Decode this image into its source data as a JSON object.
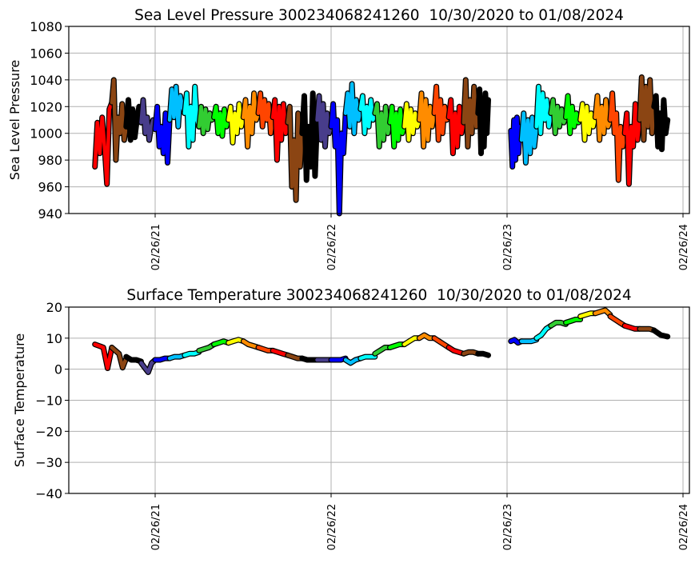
{
  "chart_data": [
    {
      "type": "line",
      "title": "Sea Level Pressure 300234068241260  10/30/2020 to 01/08/2024",
      "xlabel": "",
      "ylabel": "Sea Level Pressure",
      "ylim": [
        940,
        1080
      ],
      "yticks": [
        1080,
        1060,
        1040,
        1020,
        1000,
        980,
        960,
        940
      ],
      "ytick_labels": [
        "1080",
        "1060",
        "1040",
        "1020",
        "1000",
        "980",
        "960",
        "940"
      ],
      "xticks": [
        "2021-02-26",
        "2022-02-26",
        "2023-02-26",
        "2024-02-26"
      ],
      "xtick_labels": [
        "02/26/21",
        "02/26/22",
        "02/26/23",
        "02/26/24"
      ],
      "grid": true,
      "field": "pressure"
    },
    {
      "type": "line",
      "title": "Surface Temperature 300234068241260  10/30/2020 to 01/08/2024",
      "xlabel": "",
      "ylabel": "Surface Temperature",
      "ylim": [
        -40,
        20
      ],
      "yticks": [
        20,
        10,
        0,
        -10,
        -20,
        -30,
        -40
      ],
      "ytick_labels": [
        "20",
        "10",
        "0",
        "−10",
        "−20",
        "−30",
        "−40"
      ],
      "xticks": [
        "2021-02-26",
        "2022-02-26",
        "2023-02-26",
        "2024-02-26"
      ],
      "xtick_labels": [
        "02/26/21",
        "02/26/22",
        "02/26/23",
        "02/26/24"
      ],
      "grid": true,
      "field": "temperature"
    }
  ],
  "segments": [
    {
      "start": "2020-10-24",
      "end": "2020-11-28",
      "color": "#ff0000",
      "pressure": [
        975,
        1008,
        985,
        1012,
        990,
        962,
        1018,
        1023
      ],
      "temperature": [
        8,
        7.5,
        7,
        0.3,
        7
      ]
    },
    {
      "start": "2020-11-28",
      "end": "2020-12-28",
      "color": "#8b4513",
      "pressure": [
        1023,
        1040,
        980,
        1012,
        1000,
        1022,
        995,
        1005
      ],
      "temperature": [
        7,
        6,
        5,
        0.5,
        3.5
      ]
    },
    {
      "start": "2020-12-28",
      "end": "2021-01-28",
      "color": "#000000",
      "pressure": [
        1005,
        1025,
        995,
        1018,
        997,
        1010,
        1020,
        1008
      ],
      "temperature": [
        4,
        3,
        3,
        2.5
      ]
    },
    {
      "start": "2021-01-28",
      "end": "2021-02-26",
      "color": "#483d8b",
      "pressure": [
        1008,
        1025,
        1000,
        1012,
        995,
        1005,
        1010,
        1003
      ],
      "temperature": [
        2,
        0.5,
        -1,
        2,
        3
      ]
    },
    {
      "start": "2021-02-26",
      "end": "2021-03-28",
      "color": "#0000ff",
      "pressure": [
        1003,
        1020,
        990,
        1005,
        985,
        1015,
        978,
        1010
      ],
      "temperature": [
        3,
        3,
        3.5,
        3.5
      ]
    },
    {
      "start": "2021-03-28",
      "end": "2021-04-28",
      "color": "#00bfff",
      "pressure": [
        1010,
        1033,
        1012,
        1035,
        1005,
        1028,
        1020,
        1015
      ],
      "temperature": [
        3.5,
        4,
        4,
        4.5
      ]
    },
    {
      "start": "2021-04-28",
      "end": "2021-05-28",
      "color": "#00ffff",
      "pressure": [
        1015,
        1030,
        990,
        1020,
        995,
        1035,
        1010,
        1005
      ],
      "temperature": [
        4.5,
        5,
        5,
        5.5
      ]
    },
    {
      "start": "2021-05-28",
      "end": "2021-06-28",
      "color": "#32cd32",
      "pressure": [
        1005,
        1020,
        1000,
        1018,
        1003,
        1015,
        1010,
        1012
      ],
      "temperature": [
        6,
        6.5,
        7,
        8
      ]
    },
    {
      "start": "2021-06-28",
      "end": "2021-07-28",
      "color": "#00ff00",
      "pressure": [
        1012,
        1020,
        1000,
        1015,
        998,
        1018,
        1005,
        1010
      ],
      "temperature": [
        8,
        8.5,
        9,
        8.5
      ]
    },
    {
      "start": "2021-07-28",
      "end": "2021-08-28",
      "color": "#ffff00",
      "pressure": [
        1010,
        1020,
        993,
        1015,
        1000,
        1022,
        1005,
        1012
      ],
      "temperature": [
        8.5,
        9,
        9.5,
        9
      ]
    },
    {
      "start": "2021-08-28",
      "end": "2021-09-28",
      "color": "#ff8c00",
      "pressure": [
        1012,
        1025,
        990,
        1020,
        1000,
        1030,
        1010,
        1015
      ],
      "temperature": [
        9,
        8,
        7.5,
        7
      ]
    },
    {
      "start": "2021-09-28",
      "end": "2021-10-28",
      "color": "#ff4500",
      "pressure": [
        1015,
        1030,
        1005,
        1025,
        1010,
        1022,
        1000,
        1012
      ],
      "temperature": [
        7,
        6.5,
        6,
        6
      ]
    },
    {
      "start": "2021-10-28",
      "end": "2021-11-28",
      "color": "#ff0000",
      "pressure": [
        1012,
        1025,
        980,
        1020,
        995,
        1022,
        1000,
        1008
      ],
      "temperature": [
        6,
        5.5,
        5,
        4.5
      ]
    },
    {
      "start": "2021-11-28",
      "end": "2021-12-28",
      "color": "#8b4513",
      "pressure": [
        1008,
        1020,
        960,
        995,
        950,
        1015,
        975,
        1000
      ],
      "temperature": [
        4.5,
        4,
        3.5,
        3.5
      ]
    },
    {
      "start": "2021-12-28",
      "end": "2022-01-28",
      "color": "#000000",
      "pressure": [
        1000,
        1028,
        965,
        1005,
        975,
        1030,
        968,
        1010
      ],
      "temperature": [
        3.5,
        3,
        3,
        3
      ]
    },
    {
      "start": "2022-01-28",
      "end": "2022-02-26",
      "color": "#483d8b",
      "pressure": [
        1010,
        1028,
        995,
        1022,
        990,
        1015,
        1000,
        1005
      ],
      "temperature": [
        3,
        3,
        3,
        3
      ]
    },
    {
      "start": "2022-02-26",
      "end": "2022-03-28",
      "color": "#0000ff",
      "pressure": [
        1005,
        1022,
        990,
        1010,
        940,
        1000,
        985,
        1015
      ],
      "temperature": [
        3,
        3,
        3,
        3.5
      ]
    },
    {
      "start": "2022-03-28",
      "end": "2022-04-28",
      "color": "#00bfff",
      "pressure": [
        1015,
        1030,
        1005,
        1037,
        1000,
        1025,
        1010,
        1018
      ],
      "temperature": [
        3,
        2,
        3,
        3.5
      ]
    },
    {
      "start": "2022-04-28",
      "end": "2022-05-28",
      "color": "#00ffff",
      "pressure": [
        1018,
        1028,
        1000,
        1020,
        1005,
        1025,
        1010,
        1015
      ],
      "temperature": [
        3.5,
        4,
        4,
        4
      ]
    },
    {
      "start": "2022-05-28",
      "end": "2022-06-28",
      "color": "#32cd32",
      "pressure": [
        1015,
        1022,
        990,
        1015,
        995,
        1020,
        1000,
        1008
      ],
      "temperature": [
        5,
        6,
        7,
        7
      ]
    },
    {
      "start": "2022-06-28",
      "end": "2022-07-28",
      "color": "#00ff00",
      "pressure": [
        1008,
        1020,
        990,
        1015,
        995,
        1018,
        1000,
        1005
      ],
      "temperature": [
        7,
        7.5,
        8,
        8
      ]
    },
    {
      "start": "2022-07-28",
      "end": "2022-08-28",
      "color": "#ffff00",
      "pressure": [
        1005,
        1022,
        995,
        1018,
        1000,
        1015,
        1005,
        1010
      ],
      "temperature": [
        8,
        9,
        10,
        10
      ]
    },
    {
      "start": "2022-08-28",
      "end": "2022-09-28",
      "color": "#ff8c00",
      "pressure": [
        1010,
        1030,
        990,
        1025,
        995,
        1020,
        1005,
        1015
      ],
      "temperature": [
        10,
        11,
        10,
        10
      ]
    },
    {
      "start": "2022-09-28",
      "end": "2022-10-28",
      "color": "#ff4500",
      "pressure": [
        1015,
        1035,
        995,
        1025,
        1000,
        1020,
        1010,
        1012
      ],
      "temperature": [
        10,
        9,
        8,
        7
      ]
    },
    {
      "start": "2022-10-28",
      "end": "2022-11-28",
      "color": "#ff0000",
      "pressure": [
        1012,
        1025,
        985,
        1015,
        990,
        1020,
        1000,
        1008
      ],
      "temperature": [
        7,
        6,
        5.5,
        5
      ]
    },
    {
      "start": "2022-11-28",
      "end": "2022-12-28",
      "color": "#8b4513",
      "pressure": [
        1008,
        1040,
        990,
        1025,
        1000,
        1035,
        1005,
        1015
      ],
      "temperature": [
        5,
        5.5,
        5.5,
        5
      ]
    },
    {
      "start": "2022-12-28",
      "end": "2023-01-18",
      "color": "#000000",
      "pressure": [
        1015,
        1033,
        985,
        1020,
        990,
        1030,
        1000,
        1025
      ],
      "temperature": [
        5,
        5,
        4.5
      ]
    },
    {
      "start": "2023-03-06",
      "end": "2023-03-28",
      "color": "#0000ff",
      "pressure": [
        1002,
        975,
        1010,
        980,
        1012,
        985,
        1005,
        995
      ],
      "temperature": [
        9,
        9.5,
        8.5,
        9
      ]
    },
    {
      "start": "2023-03-28",
      "end": "2023-04-28",
      "color": "#00bfff",
      "pressure": [
        995,
        1015,
        978,
        1010,
        985,
        1012,
        990,
        1005
      ],
      "temperature": [
        9,
        9,
        9,
        9.5
      ]
    },
    {
      "start": "2023-04-28",
      "end": "2023-05-28",
      "color": "#00ffff",
      "pressure": [
        1005,
        1035,
        1000,
        1030,
        1010,
        1025,
        1005,
        1015
      ],
      "temperature": [
        10,
        11,
        13,
        14
      ]
    },
    {
      "start": "2023-05-28",
      "end": "2023-06-28",
      "color": "#32cd32",
      "pressure": [
        1015,
        1025,
        1000,
        1020,
        1005,
        1018,
        1008,
        1012
      ],
      "temperature": [
        14,
        15,
        15,
        14.5
      ]
    },
    {
      "start": "2023-06-28",
      "end": "2023-07-28",
      "color": "#00ff00",
      "pressure": [
        1012,
        1028,
        1000,
        1020,
        1005,
        1015,
        1008,
        1010
      ],
      "temperature": [
        15,
        15.5,
        16,
        16
      ]
    },
    {
      "start": "2023-07-28",
      "end": "2023-08-28",
      "color": "#ffff00",
      "pressure": [
        1010,
        1022,
        995,
        1020,
        1000,
        1015,
        1005,
        1012
      ],
      "temperature": [
        17,
        17.5,
        18,
        18
      ]
    },
    {
      "start": "2023-08-28",
      "end": "2023-09-28",
      "color": "#ff8c00",
      "pressure": [
        1012,
        1028,
        995,
        1020,
        1000,
        1025,
        1005,
        1010
      ],
      "temperature": [
        18,
        18.5,
        19,
        17.5
      ]
    },
    {
      "start": "2023-09-28",
      "end": "2023-10-28",
      "color": "#ff4500",
      "pressure": [
        1010,
        1030,
        1000,
        1015,
        965,
        1005,
        990,
        1000
      ],
      "temperature": [
        17,
        16,
        15,
        14
      ]
    },
    {
      "start": "2023-10-28",
      "end": "2023-11-28",
      "color": "#ff0000",
      "pressure": [
        1000,
        1015,
        962,
        1005,
        990,
        1022,
        995,
        1010
      ],
      "temperature": [
        14,
        13.5,
        13,
        13
      ]
    },
    {
      "start": "2023-11-28",
      "end": "2023-12-28",
      "color": "#8b4513",
      "pressure": [
        1010,
        1042,
        995,
        1035,
        1005,
        1040,
        1000,
        1020
      ],
      "temperature": [
        13,
        13,
        13,
        12.5
      ]
    },
    {
      "start": "2023-12-28",
      "end": "2024-01-25",
      "color": "#000000",
      "pressure": [
        1020,
        1028,
        990,
        1015,
        988,
        1025,
        1000,
        1010
      ],
      "temperature": [
        12.5,
        11,
        10.5
      ]
    }
  ]
}
